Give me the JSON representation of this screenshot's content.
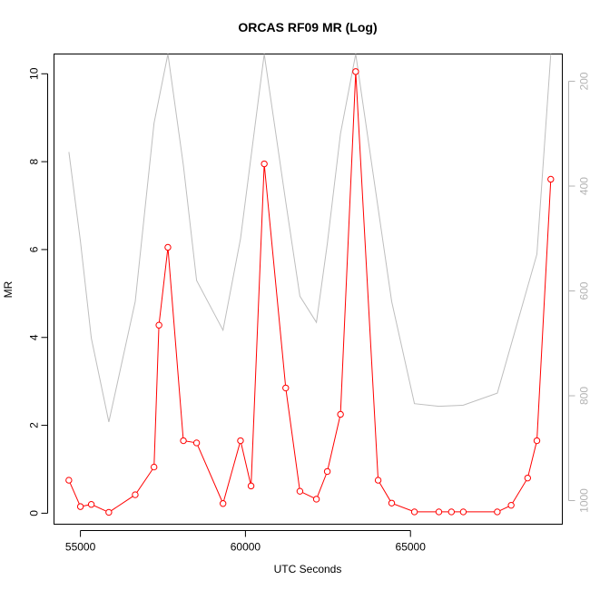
{
  "chart_data": {
    "type": "line",
    "title": "ORCAS RF09 MR (Log)",
    "xlabel": "UTC Seconds",
    "ylabel": "MR",
    "xlim": [
      54200,
      69600
    ],
    "ylim": [
      -0.25,
      10.45
    ],
    "x_ticks": [
      55000,
      60000,
      65000
    ],
    "y_ticks": [
      0,
      2,
      4,
      6,
      8,
      10
    ],
    "y2_ticks": [
      200,
      400,
      600,
      800,
      1000
    ],
    "y2lim_top_to_bottom": [
      148,
      1045
    ],
    "y2_reversed": true,
    "grid": false,
    "colors": {
      "primary": "#ff0000",
      "secondary": "#bebebe",
      "axis": "#000000",
      "secondary_axis": "#b3b3b3"
    },
    "series": [
      {
        "axis": "left",
        "marker": "open-circle",
        "x": [
          54650,
          55000,
          55330,
          55860,
          56660,
          57230,
          57380,
          57650,
          58120,
          58520,
          59320,
          59850,
          60170,
          60570,
          61220,
          61650,
          62150,
          62480,
          62880,
          63340,
          64020,
          64430,
          65120,
          65860,
          66240,
          66600,
          67630,
          68050,
          68550,
          68830,
          69250
        ],
        "y": [
          0.75,
          0.15,
          0.2,
          0.02,
          0.42,
          1.05,
          4.28,
          6.05,
          1.65,
          1.6,
          0.22,
          1.65,
          0.62,
          7.95,
          2.85,
          0.5,
          0.32,
          0.95,
          2.25,
          10.05,
          0.75,
          0.23,
          0.03,
          0.03,
          0.03,
          0.03,
          0.03,
          0.18,
          0.8,
          1.65,
          7.6
        ]
      },
      {
        "axis": "right",
        "marker": "none",
        "x": [
          54650,
          55000,
          55330,
          55860,
          56660,
          57230,
          57650,
          58120,
          58520,
          59320,
          59850,
          60570,
          61220,
          61650,
          62150,
          62480,
          62880,
          63340,
          64430,
          65120,
          65860,
          66600,
          67630,
          68830,
          69250
        ],
        "y": [
          335,
          505,
          690,
          850,
          620,
          280,
          148,
          360,
          580,
          675,
          500,
          148,
          430,
          610,
          660,
          510,
          300,
          148,
          620,
          815,
          820,
          818,
          795,
          530,
          148
        ]
      }
    ]
  }
}
